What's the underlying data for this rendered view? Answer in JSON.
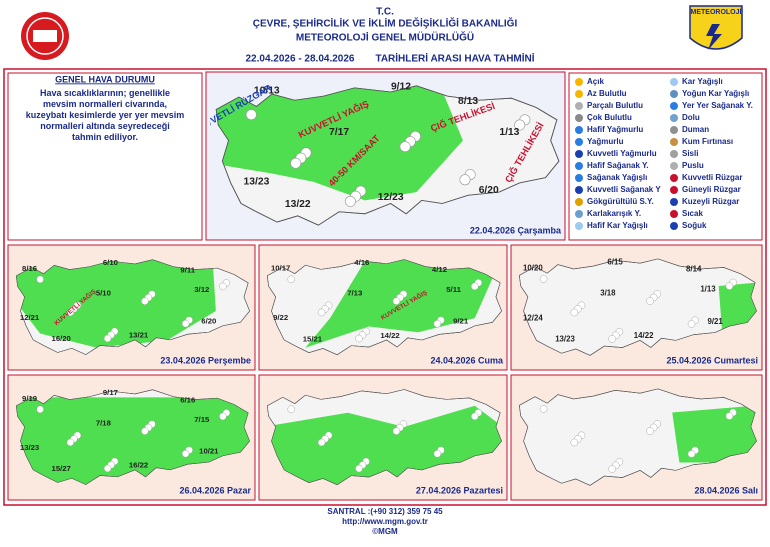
{
  "header": {
    "line1": "T.C.",
    "ministry": "ÇEVRE, ŞEHİRCİLİK VE İKLİM DEĞİŞİKLİĞİ BAKANLIĞI",
    "directorate": "METEOROLOJİ GENEL MÜDÜRLÜĞÜ",
    "date_range": "22.04.2026 - 28.04.2026",
    "title": "TARİHLERİ ARASI HAVA TAHMİNİ",
    "logo_text": "METEOROLOJİ"
  },
  "general": {
    "heading": "GENEL HAVA DURUMU",
    "text": "Hava sıcaklıklarının; genellikle mevsim normalleri civarında, kuzeybatı kesimlerde yer yer mevsim normalleri altında seyredeceği tahmin ediliyor."
  },
  "legend": {
    "items": [
      "Açık",
      "Az Bulutlu",
      "Parçalı Bulutlu",
      "Çok Bulutlu",
      "Hafif Yağmurlu",
      "Yağmurlu",
      "Kuvvetli Yağmurlu",
      "Hafif Sağanak Y.",
      "Sağanak Yağışlı",
      "Kuvvetli Sağanak Y",
      "Gökgürültülü S.Y.",
      "Karlakarışık Y.",
      "Hafif Kar Yağışlı",
      "Kar Yağışlı",
      "Yoğun Kar Yağışlı",
      "Yer Yer Sağanak Y.",
      "Dolu",
      "Duman",
      "Kum Fırtınası",
      "Sisli",
      "Puslu",
      "Kuvvetli Rüzgar",
      "Güneyli Rüzgar",
      "Kuzeyli Rüzgar",
      "Sıcak",
      "Soğuk"
    ]
  },
  "maps": [
    {
      "caption": "22.04.2026 Çarşamba",
      "temps": [
        "10/13",
        "9/12",
        "8/13",
        "1/13",
        "7/17",
        "13/23",
        "13/22",
        "12/23",
        "6/20"
      ],
      "warnings": [
        "KUVVETLİ YAĞIŞ",
        "KUVVETLİ RÜZGAR",
        "40-50 KM/SAAT",
        "ÇIĞ TEHLİKESİ",
        "ÇIĞ TEHLİKESİ"
      ]
    },
    {
      "caption": "23.04.2026 Perşembe",
      "temps": [
        "8/16",
        "6/10",
        "9/11",
        "5/10",
        "3/12",
        "12/21",
        "6/20",
        "16/20",
        "13/21"
      ],
      "warnings": [
        "KUVVETLİ YAĞIŞ"
      ]
    },
    {
      "caption": "24.04.2026 Cuma",
      "temps": [
        "10/17",
        "4/16",
        "4/12",
        "7/13",
        "5/11",
        "9/22",
        "9/21",
        "15/21",
        "14/22"
      ],
      "warnings": [
        "KUVVETLİ YAĞIŞ"
      ]
    },
    {
      "caption": "25.04.2026 Cumartesi",
      "temps": [
        "10/20",
        "6/15",
        "8/14",
        "3/18",
        "1/13",
        "12/24",
        "9/21",
        "13/23",
        "14/22"
      ],
      "warnings": []
    },
    {
      "caption": "26.04.2026 Pazar",
      "temps": [
        "9/19",
        "9/17",
        "6/16",
        "7/18",
        "7/15",
        "13/23",
        "10/21",
        "15/27",
        "16/22"
      ],
      "warnings": []
    },
    {
      "caption": "27.04.2026 Pazartesi",
      "temps": [],
      "warnings": []
    },
    {
      "caption": "28.04.2026 Salı",
      "temps": [],
      "warnings": []
    }
  ],
  "footer": {
    "phone": "SANTRAL :(+90 312) 359 75 45",
    "url": "http://www.mgm.gov.tr",
    "copyright": "©MGM"
  }
}
